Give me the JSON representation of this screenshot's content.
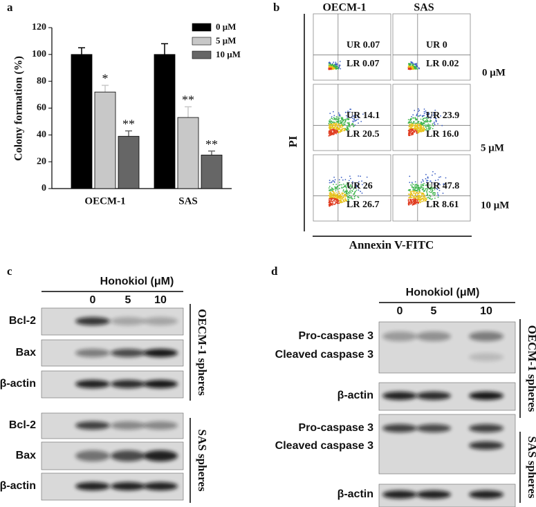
{
  "chart_data": {
    "type": "bar",
    "label": "a",
    "y_label": "Colony formation (%)",
    "categories": [
      "OECM-1",
      "SAS"
    ],
    "series": [
      {
        "name": "0 μM",
        "color": "#000000",
        "values": [
          100,
          100
        ],
        "errors": [
          5,
          8
        ],
        "annotations": [
          null,
          null
        ]
      },
      {
        "name": "5 μM",
        "color": "#c8c8c8",
        "values": [
          72,
          53
        ],
        "errors": [
          5,
          8
        ],
        "annotations": [
          "*",
          "**"
        ]
      },
      {
        "name": "10 μM",
        "color": "#666666",
        "values": [
          39,
          25
        ],
        "errors": [
          4,
          3
        ],
        "annotations": [
          "**",
          "**"
        ]
      }
    ],
    "ylim": [
      0,
      120
    ],
    "yticks": [
      0,
      20,
      40,
      60,
      80,
      100,
      120
    ]
  },
  "flow": {
    "label": "b",
    "x_label": "Annexin V-FITC",
    "y_label": "PI",
    "columns": [
      "OECM-1",
      "SAS"
    ],
    "rows": [
      {
        "label": "0 μM",
        "cells": [
          {
            "ur": "UR 0.07",
            "lr": "LR 0.07"
          },
          {
            "ur": "UR 0",
            "lr": "LR 0.02"
          }
        ]
      },
      {
        "label": "5 μM",
        "cells": [
          {
            "ur": "UR 14.1",
            "lr": "LR 20.5"
          },
          {
            "ur": "UR 23.9",
            "lr": "LR 16.0"
          }
        ]
      },
      {
        "label": "10 μM",
        "cells": [
          {
            "ur": "UR 26",
            "lr": "LR 26.7"
          },
          {
            "ur": "UR 47.8",
            "lr": "LR 8.61"
          }
        ]
      }
    ]
  },
  "blot_c": {
    "label": "c",
    "treatment": "Honokiol (μM)",
    "lanes": [
      0,
      5,
      10
    ],
    "groups": [
      {
        "name": "OECM-1 spheres",
        "rows": [
          "Bcl-2",
          "Bax",
          "β-actin"
        ]
      },
      {
        "name": "SAS spheres",
        "rows": [
          "Bcl-2",
          "Bax",
          "β-actin"
        ]
      }
    ]
  },
  "blot_d": {
    "label": "d",
    "treatment": "Honokiol (μM)",
    "lanes": [
      0,
      5,
      10
    ],
    "groups": [
      {
        "name": "OECM-1 spheres",
        "rows": [
          "Pro-caspase 3",
          "Cleaved caspase 3",
          "β-actin"
        ]
      },
      {
        "name": "SAS spheres",
        "rows": [
          "Pro-caspase 3",
          "Cleaved caspase 3",
          "β-actin"
        ]
      }
    ]
  }
}
